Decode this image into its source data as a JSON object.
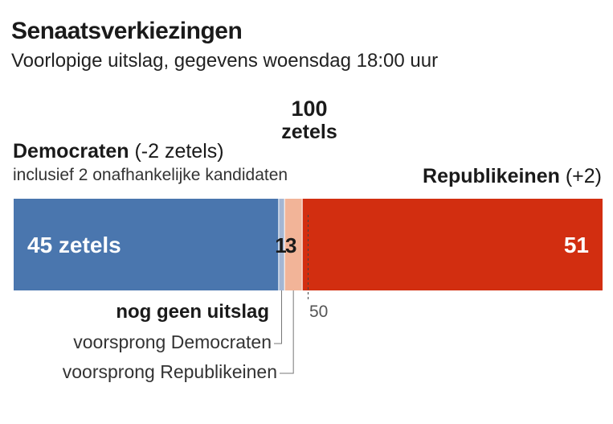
{
  "title": "Senaatsverkiezingen",
  "subtitle": "Voorlopige uitslag, gegevens woensdag 18:00 uur",
  "total": {
    "number": "100",
    "unit": "zetels"
  },
  "democrats": {
    "name": "Democraten",
    "change": "(-2 zetels)",
    "note": "inclusief 2 onafhankelijke kandidaten",
    "bar_label": "45 zetels"
  },
  "republicans": {
    "name": "Republikeinen",
    "change": "(+2)",
    "bar_label": "51"
  },
  "pending": {
    "dem_lead_label": "1",
    "rep_lead_label": "3"
  },
  "legend": {
    "heading": "nog geen uitslag",
    "dem_lead": "voorsprong Democraten",
    "rep_lead": "voorsprong Republikeinen"
  },
  "majority_label": "50",
  "colors": {
    "democrats": "#4a76ae",
    "dem_lead": "#a4b6d3",
    "rep_lead": "#f2b498",
    "republicans": "#d22e10"
  },
  "chart_data": {
    "type": "bar",
    "orientation": "horizontal-stacked",
    "title": "Senaatsverkiezingen",
    "subtitle": "Voorlopige uitslag, gegevens woensdag 18:00 uur",
    "total": 100,
    "majority_marker": 50,
    "series": [
      {
        "name": "Democraten",
        "value": 45,
        "color": "#4a76ae"
      },
      {
        "name": "voorsprong Democraten",
        "value": 1,
        "color": "#a4b6d3"
      },
      {
        "name": "voorsprong Republikeinen",
        "value": 3,
        "color": "#f2b498"
      },
      {
        "name": "Republikeinen",
        "value": 51,
        "color": "#d22e10"
      }
    ]
  }
}
